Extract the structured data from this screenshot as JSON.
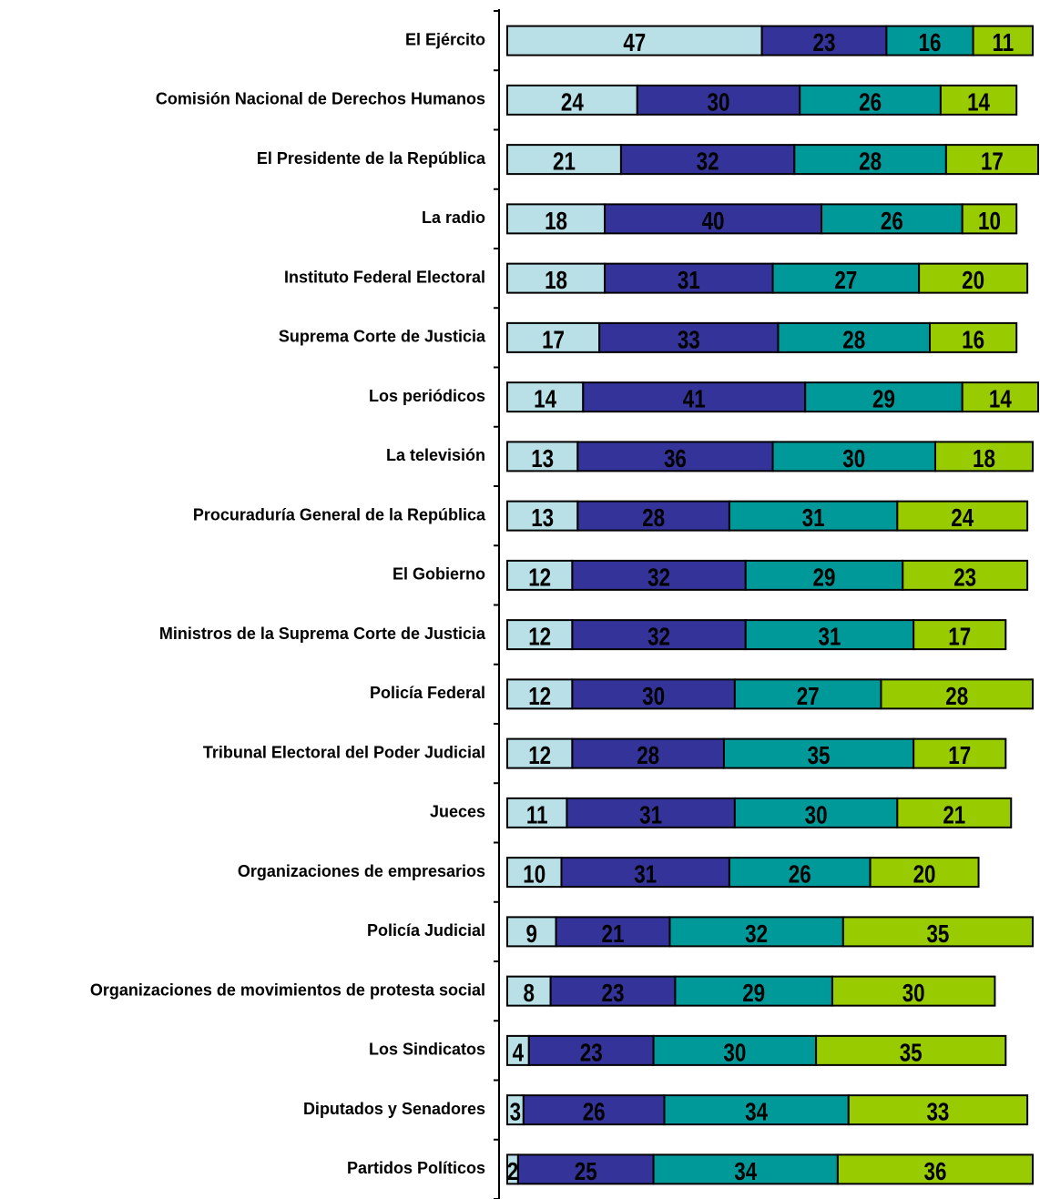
{
  "chart_data": {
    "type": "stacked-bar-horizontal",
    "categories": [
      "El Ejército",
      "Comisión Nacional de Derechos Humanos",
      "El Presidente de la República",
      "La radio",
      "Instituto Federal Electoral",
      "Suprema Corte de Justicia",
      "Los periódicos",
      "La televisión",
      "Procuraduría General de la República",
      "El Gobierno",
      "Ministros de la Suprema Corte de Justicia",
      "Policía Federal",
      "Tribunal Electoral del Poder Judicial",
      "Jueces",
      "Organizaciones de empresarios",
      "Policía Judicial",
      "Organizaciones de movimientos de protesta social",
      "Los Sindicatos",
      "Diputados y Senadores",
      "Partidos Políticos"
    ],
    "series": [
      {
        "color": "#b8e0e6",
        "values": [
          47,
          24,
          21,
          18,
          18,
          17,
          14,
          13,
          13,
          12,
          12,
          12,
          12,
          11,
          10,
          9,
          8,
          4,
          3,
          2
        ]
      },
      {
        "color": "#333399",
        "values": [
          23,
          30,
          32,
          40,
          31,
          33,
          41,
          36,
          28,
          32,
          32,
          30,
          28,
          31,
          31,
          21,
          23,
          23,
          26,
          25
        ]
      },
      {
        "color": "#009999",
        "values": [
          16,
          26,
          28,
          26,
          27,
          28,
          29,
          30,
          31,
          29,
          31,
          27,
          35,
          30,
          26,
          32,
          29,
          30,
          34,
          34
        ]
      },
      {
        "color": "#99cc00",
        "values": [
          11,
          14,
          17,
          10,
          20,
          16,
          14,
          18,
          24,
          23,
          17,
          28,
          17,
          21,
          20,
          35,
          30,
          35,
          33,
          36
        ]
      }
    ]
  }
}
